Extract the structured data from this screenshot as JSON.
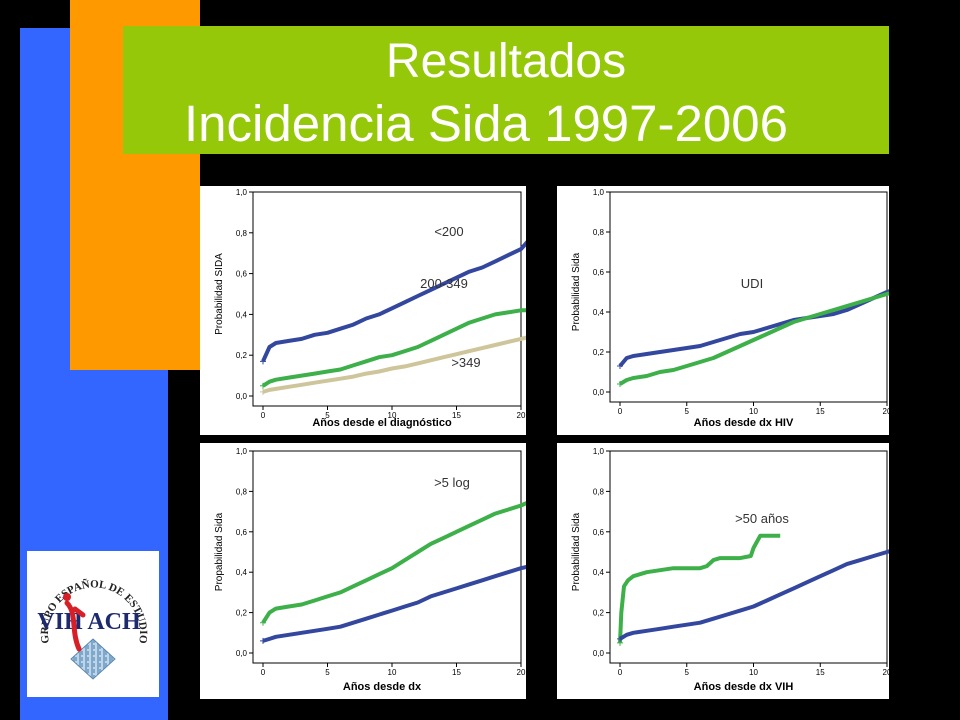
{
  "slide": {
    "title_line1": "Resultados",
    "title_line2": "Incidencia Sida 1997-2006",
    "colors": {
      "background": "#000000",
      "orange": "#ff9900",
      "blue": "#3366ff",
      "green_band": "#96c80a",
      "title_text": "#ffffff"
    }
  },
  "logo": {
    "ring_text": "GRUPO ESPAÑOL DE ESTUDIOS VIH/ACH",
    "mark_text": "VIH ACH",
    "icon": "gesida-logo-icon"
  },
  "chart_data": [
    {
      "type": "line",
      "ylabel": "Probabilidad SIDA",
      "xlabel": "Años desde el diagnóstico",
      "xlim": [
        0,
        20
      ],
      "ylim": [
        0,
        1.0
      ],
      "xticks": [
        "0",
        "5",
        "10",
        "15",
        "20"
      ],
      "yticks": [
        "0,0",
        "0,2",
        "0,4",
        "0,6",
        "0,8",
        "1,0"
      ],
      "annotations": [
        "<200",
        "200-349",
        ">349"
      ],
      "series": [
        {
          "color": "#33479f",
          "x": [
            0,
            0.5,
            1,
            2,
            3,
            4,
            5,
            6,
            7,
            8,
            9,
            10,
            11,
            12,
            13,
            14,
            15,
            16,
            17,
            18,
            19,
            20,
            20.7
          ],
          "y": [
            0.17,
            0.24,
            0.26,
            0.27,
            0.28,
            0.3,
            0.31,
            0.33,
            0.35,
            0.38,
            0.4,
            0.43,
            0.46,
            0.49,
            0.52,
            0.55,
            0.58,
            0.61,
            0.63,
            0.66,
            0.69,
            0.72,
            0.77
          ]
        },
        {
          "color": "#3db04a",
          "x": [
            0,
            0.5,
            1,
            2,
            3,
            4,
            5,
            6,
            7,
            8,
            9,
            10,
            11,
            12,
            13,
            14,
            15,
            16,
            17,
            18,
            19,
            20,
            20.7
          ],
          "y": [
            0.05,
            0.07,
            0.08,
            0.09,
            0.1,
            0.11,
            0.12,
            0.13,
            0.15,
            0.17,
            0.19,
            0.2,
            0.22,
            0.24,
            0.27,
            0.3,
            0.33,
            0.36,
            0.38,
            0.4,
            0.41,
            0.42,
            0.42
          ]
        },
        {
          "color": "#cfc59a",
          "x": [
            0,
            0.5,
            1,
            2,
            3,
            4,
            5,
            6,
            7,
            8,
            9,
            10,
            11,
            12,
            13,
            14,
            15,
            16,
            17,
            18,
            19,
            20,
            20.7
          ],
          "y": [
            0.02,
            0.03,
            0.035,
            0.045,
            0.055,
            0.065,
            0.075,
            0.085,
            0.095,
            0.11,
            0.12,
            0.135,
            0.145,
            0.16,
            0.175,
            0.19,
            0.205,
            0.22,
            0.235,
            0.25,
            0.265,
            0.28,
            0.29
          ]
        }
      ]
    },
    {
      "type": "line",
      "ylabel": "Probabilidad Sida",
      "xlabel": "Años desde dx HIV",
      "xlim": [
        0,
        20
      ],
      "ylim": [
        0,
        1.0
      ],
      "xticks": [
        "0",
        "5",
        "10",
        "15",
        "20"
      ],
      "yticks": [
        "0,0",
        "0,2",
        "0,4",
        "0,6",
        "0,8",
        "1,0"
      ],
      "annotations": [
        "UDI"
      ],
      "series": [
        {
          "color": "#33479f",
          "x": [
            0,
            0.5,
            1,
            2,
            3,
            4,
            5,
            6,
            7,
            8,
            9,
            10,
            11,
            12,
            13,
            14,
            15,
            16,
            17,
            18,
            19,
            20,
            20.5
          ],
          "y": [
            0.13,
            0.17,
            0.18,
            0.19,
            0.2,
            0.21,
            0.22,
            0.23,
            0.25,
            0.27,
            0.29,
            0.3,
            0.32,
            0.34,
            0.36,
            0.37,
            0.38,
            0.39,
            0.41,
            0.44,
            0.47,
            0.5,
            0.51
          ]
        },
        {
          "color": "#3db04a",
          "x": [
            0,
            0.5,
            1,
            2,
            3,
            4,
            5,
            6,
            7,
            8,
            9,
            10,
            11,
            12,
            13,
            14,
            15,
            16,
            17,
            18,
            19,
            20,
            20.5
          ],
          "y": [
            0.04,
            0.06,
            0.07,
            0.08,
            0.1,
            0.11,
            0.13,
            0.15,
            0.17,
            0.2,
            0.23,
            0.26,
            0.29,
            0.32,
            0.35,
            0.37,
            0.39,
            0.41,
            0.43,
            0.45,
            0.47,
            0.49,
            0.5
          ]
        }
      ]
    },
    {
      "type": "line",
      "ylabel": "Propabilidad Sida",
      "xlabel": "Años desde dx",
      "xlim": [
        0,
        20
      ],
      "ylim": [
        0,
        1.0
      ],
      "xticks": [
        "0",
        "5",
        "10",
        "15",
        "20"
      ],
      "yticks": [
        "0,0",
        "0,2",
        "0,4",
        "0,6",
        "0,8",
        "1,0"
      ],
      "annotations": [
        ">5 log"
      ],
      "series": [
        {
          "color": "#3db04a",
          "x": [
            0,
            0.5,
            1,
            2,
            3,
            4,
            5,
            6,
            7,
            8,
            9,
            10,
            11,
            12,
            13,
            14,
            15,
            16,
            17,
            18,
            19,
            20,
            20.7
          ],
          "y": [
            0.15,
            0.2,
            0.22,
            0.23,
            0.24,
            0.26,
            0.28,
            0.3,
            0.33,
            0.36,
            0.39,
            0.42,
            0.46,
            0.5,
            0.54,
            0.57,
            0.6,
            0.63,
            0.66,
            0.69,
            0.71,
            0.73,
            0.75
          ]
        },
        {
          "color": "#33479f",
          "x": [
            0,
            0.5,
            1,
            2,
            3,
            4,
            5,
            6,
            7,
            8,
            9,
            10,
            11,
            12,
            13,
            14,
            15,
            16,
            17,
            18,
            19,
            20,
            20.7
          ],
          "y": [
            0.06,
            0.07,
            0.08,
            0.09,
            0.1,
            0.11,
            0.12,
            0.13,
            0.15,
            0.17,
            0.19,
            0.21,
            0.23,
            0.25,
            0.28,
            0.3,
            0.32,
            0.34,
            0.36,
            0.38,
            0.4,
            0.42,
            0.43
          ]
        }
      ]
    },
    {
      "type": "line",
      "ylabel": "Probabilidad Sida",
      "xlabel": "Años desde dx VIH",
      "xlim": [
        0,
        20
      ],
      "ylim": [
        0,
        1.0
      ],
      "xticks": [
        "0",
        "5",
        "10",
        "15",
        "20"
      ],
      "yticks": [
        "0,0",
        "0,2",
        "0,4",
        "0,6",
        "0,8",
        "1,0"
      ],
      "annotations": [
        ">50 años"
      ],
      "series": [
        {
          "color": "#3db04a",
          "x": [
            0,
            0.1,
            0.3,
            0.6,
            1,
            1.5,
            2,
            3,
            4,
            5,
            6,
            6.5,
            7,
            7.5,
            8,
            9,
            9.8,
            10,
            10.5,
            11,
            12
          ],
          "y": [
            0.05,
            0.2,
            0.33,
            0.36,
            0.38,
            0.39,
            0.4,
            0.41,
            0.42,
            0.42,
            0.42,
            0.43,
            0.46,
            0.47,
            0.47,
            0.47,
            0.48,
            0.52,
            0.58,
            0.58,
            0.58
          ]
        },
        {
          "color": "#33479f",
          "x": [
            0,
            0.5,
            1,
            2,
            3,
            4,
            5,
            6,
            7,
            8,
            9,
            10,
            11,
            12,
            13,
            14,
            15,
            16,
            17,
            18,
            19,
            20,
            20.5
          ],
          "y": [
            0.07,
            0.09,
            0.1,
            0.11,
            0.12,
            0.13,
            0.14,
            0.15,
            0.17,
            0.19,
            0.21,
            0.23,
            0.26,
            0.29,
            0.32,
            0.35,
            0.38,
            0.41,
            0.44,
            0.46,
            0.48,
            0.5,
            0.51
          ]
        }
      ]
    }
  ]
}
